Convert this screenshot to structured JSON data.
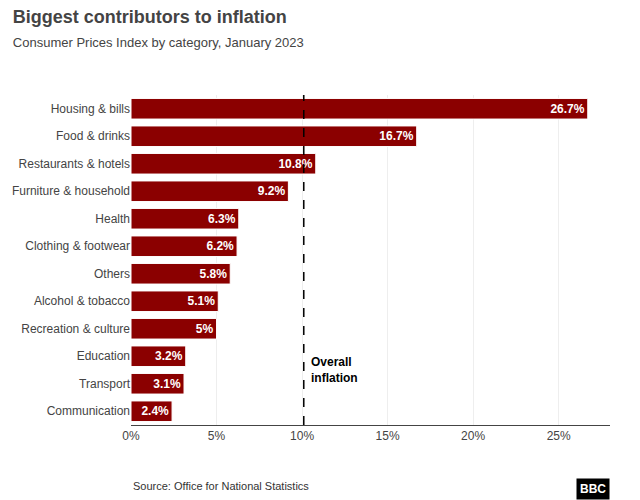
{
  "chart_data": {
    "type": "bar",
    "orientation": "horizontal",
    "title": "Biggest contributors to inflation",
    "subtitle": "Consumer Prices Index by category, January 2023",
    "source": "Source: Office for National Statistics",
    "logo": "BBC",
    "categories": [
      "Housing & bills",
      "Food & drinks",
      "Restaurants & hotels",
      "Furniture & household",
      "Health",
      "Clothing & footwear",
      "Others",
      "Alcohol & tobacco",
      "Recreation & culture",
      "Education",
      "Transport",
      "Communication"
    ],
    "values": [
      26.7,
      16.7,
      10.8,
      9.2,
      6.3,
      6.2,
      5.8,
      5.1,
      5.0,
      3.2,
      3.1,
      2.4
    ],
    "value_labels": [
      "26.7%",
      "16.7%",
      "10.8%",
      "9.2%",
      "6.3%",
      "6.2%",
      "5.8%",
      "5.1%",
      "5%",
      "3.2%",
      "3.1%",
      "2.4%"
    ],
    "data_labels": true,
    "color": "#8B0000",
    "xlim": [
      0,
      28
    ],
    "xticks": [
      {
        "value": 0,
        "label": "0%"
      },
      {
        "value": 5,
        "label": "5%"
      },
      {
        "value": 10,
        "label": "10%"
      },
      {
        "value": 15,
        "label": "15%"
      },
      {
        "value": 20,
        "label": "20%"
      },
      {
        "value": 25,
        "label": "25%"
      }
    ],
    "grid": true,
    "overall_line": {
      "value": 10.1,
      "label": "Overall\ninflation",
      "line_style": "dashed",
      "color": "black"
    }
  }
}
